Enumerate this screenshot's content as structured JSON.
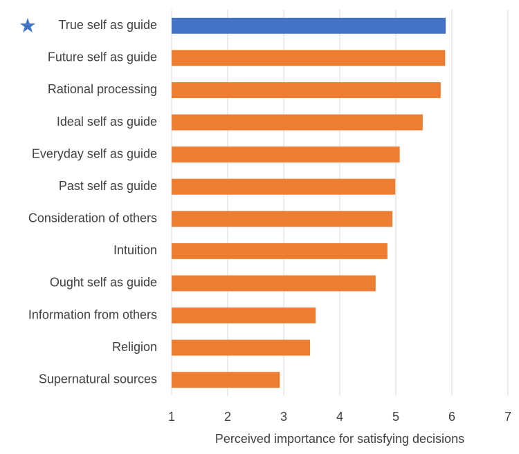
{
  "chart_data": {
    "type": "bar",
    "orientation": "horizontal",
    "xlabel": "Perceived importance for satisfying decisions",
    "categories": [
      "True self as guide",
      "Future self as guide",
      "Rational processing",
      "Ideal self as guide",
      "Everyday self as guide",
      "Past self as guide",
      "Consideration of others",
      "Intuition",
      "Ought self as guide",
      "Information from others",
      "Religion",
      "Supernatural sources"
    ],
    "values": [
      5.89,
      5.88,
      5.8,
      5.48,
      5.07,
      4.99,
      4.94,
      4.85,
      4.64,
      3.57,
      3.47,
      2.93
    ],
    "colors": [
      "#4472c4",
      "#ed7d31",
      "#ed7d31",
      "#ed7d31",
      "#ed7d31",
      "#ed7d31",
      "#ed7d31",
      "#ed7d31",
      "#ed7d31",
      "#ed7d31",
      "#ed7d31",
      "#ed7d31"
    ],
    "xlim": [
      1,
      7
    ],
    "xticks": [
      1,
      2,
      3,
      4,
      5,
      6,
      7
    ],
    "grid": true
  }
}
